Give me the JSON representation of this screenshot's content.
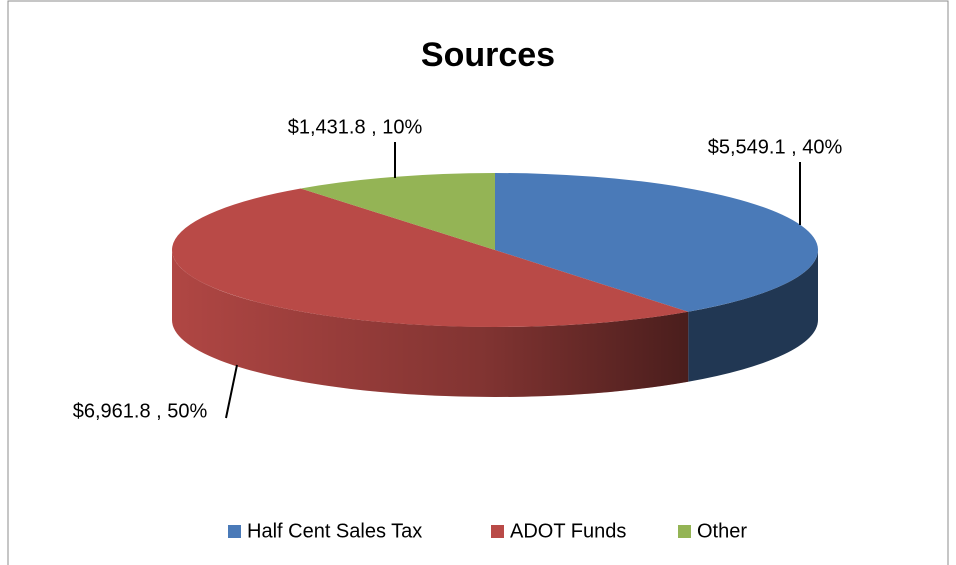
{
  "chart_data": {
    "type": "pie3d",
    "title": "Sources",
    "categories": [
      "Half Cent Sales Tax",
      "ADOT Funds",
      "Other"
    ],
    "values": [
      5549.1,
      6961.8,
      1431.8
    ],
    "value_labels": [
      "$5,549.1 , 40%",
      "$6,961.8 , 50%",
      "$1,431.8 , 10%"
    ],
    "colors": [
      "#4a7ab8",
      "#b94a47",
      "#94b455"
    ],
    "legend": "bottom"
  }
}
